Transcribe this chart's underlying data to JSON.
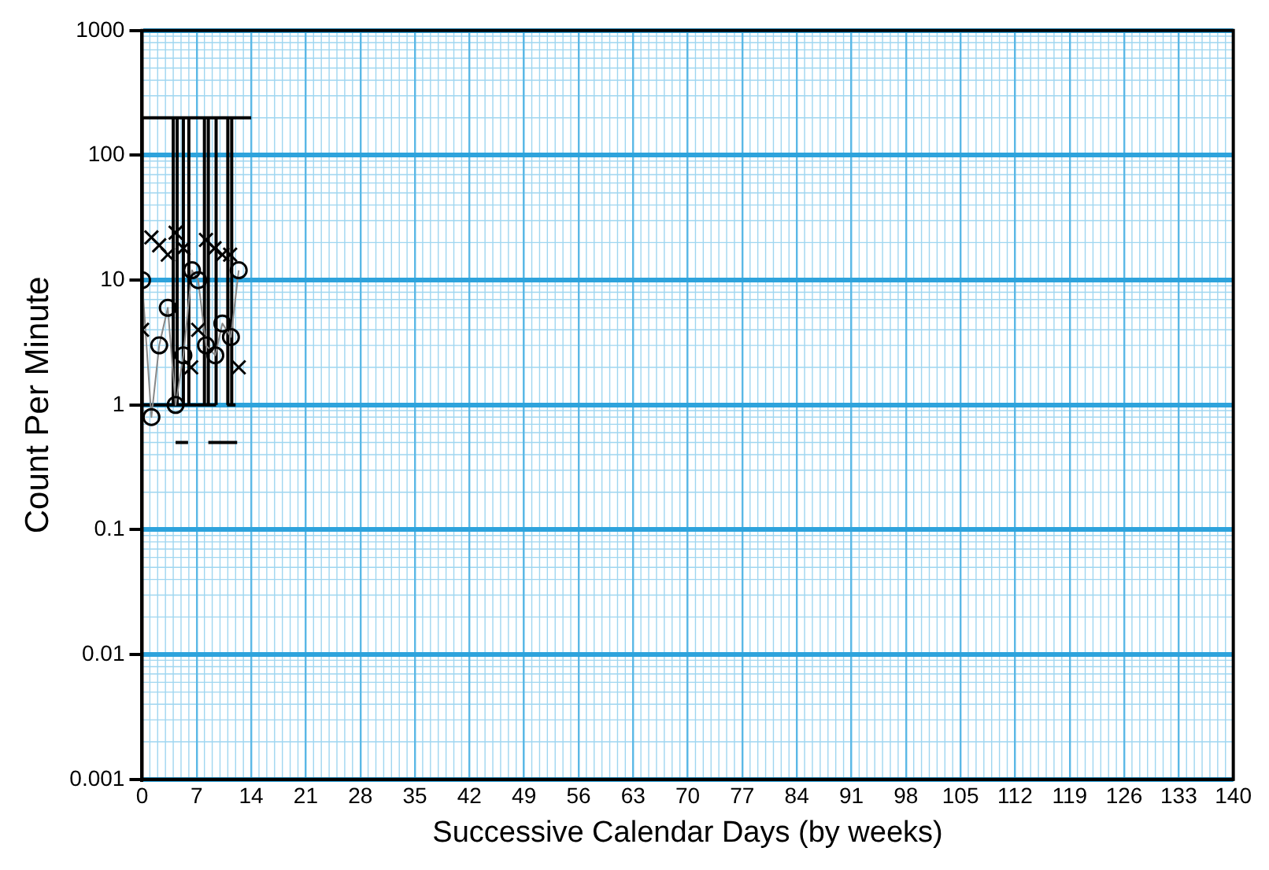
{
  "chart_data": {
    "type": "scatter",
    "xlabel": "Successive Calendar Days (by weeks)",
    "ylabel": "Count Per Minute",
    "xlim": [
      0,
      140
    ],
    "xticks": [
      0,
      7,
      14,
      21,
      28,
      35,
      42,
      49,
      56,
      63,
      70,
      77,
      84,
      91,
      98,
      105,
      112,
      119,
      126,
      133,
      140
    ],
    "ylim": [
      0.001,
      1000
    ],
    "yticks": [
      0.001,
      0.01,
      0.1,
      1,
      10,
      100,
      1000
    ],
    "log": true,
    "grid": true,
    "legend": false,
    "series": [
      {
        "type": "line",
        "color": "#000000",
        "marker": "none",
        "x": [
          0,
          0
        ],
        "values": [
          1,
          200
        ]
      },
      {
        "type": "line",
        "color": "#000000",
        "marker": "none",
        "x": [
          4,
          4
        ],
        "values": [
          1,
          200
        ]
      },
      {
        "type": "line",
        "color": "#000000",
        "marker": "none",
        "x": [
          4.5,
          4.5
        ],
        "values": [
          1,
          200
        ]
      },
      {
        "type": "line",
        "color": "#000000",
        "marker": "none",
        "x": [
          5.3,
          5.3
        ],
        "values": [
          1,
          200
        ]
      },
      {
        "type": "line",
        "color": "#000000",
        "marker": "none",
        "x": [
          6,
          6
        ],
        "values": [
          1,
          200
        ]
      },
      {
        "type": "line",
        "color": "#000000",
        "marker": "none",
        "x": [
          8,
          8
        ],
        "values": [
          1,
          200
        ]
      },
      {
        "type": "line",
        "color": "#000000",
        "marker": "none",
        "x": [
          8.5,
          8.5
        ],
        "values": [
          1,
          200
        ]
      },
      {
        "type": "line",
        "color": "#000000",
        "marker": "none",
        "x": [
          9.5,
          9.5
        ],
        "values": [
          1,
          200
        ]
      },
      {
        "type": "line",
        "color": "#000000",
        "marker": "none",
        "x": [
          11,
          11
        ],
        "values": [
          1,
          200
        ]
      },
      {
        "type": "line",
        "color": "#000000",
        "marker": "none",
        "x": [
          11.5,
          11.5
        ],
        "values": [
          1,
          200
        ]
      },
      {
        "type": "line",
        "color": "#000000",
        "marker": "none",
        "x": [
          0,
          14
        ],
        "values": [
          200,
          200
        ]
      },
      {
        "type": "line",
        "color": "#000000",
        "marker": "none",
        "x": [
          0,
          9.5
        ],
        "values": [
          1,
          1
        ]
      },
      {
        "type": "line",
        "color": "#000000",
        "marker": "none",
        "x": [
          10.9,
          12
        ],
        "values": [
          1,
          1
        ]
      },
      {
        "type": "line",
        "color": "#000000",
        "marker": "none",
        "x": [
          4.3,
          5.9
        ],
        "values": [
          0.5,
          0.5
        ]
      },
      {
        "type": "line",
        "color": "#000000",
        "marker": "none",
        "x": [
          8.5,
          12.2
        ],
        "values": [
          0.5,
          0.5
        ]
      },
      {
        "type": "line",
        "color": "#000000",
        "marker": "circle",
        "line_style": "solid",
        "x": [
          0,
          1.2,
          2.2,
          3.3,
          4.3,
          5.3,
          6.4,
          7.2,
          8.2,
          9.4,
          10.3,
          11.4,
          12.4
        ],
        "values": [
          10,
          0.8,
          3,
          6,
          1,
          2.5,
          12,
          10,
          3,
          2.5,
          4.5,
          3.5,
          12
        ]
      },
      {
        "color": "#000000",
        "marker": "cross",
        "x": [
          0,
          1.2,
          2.2,
          3.3,
          4.3,
          5.3,
          6.3,
          7.2,
          8.2,
          9.3,
          10.3,
          11.3,
          12.4
        ],
        "values": [
          4,
          22,
          19,
          16,
          24,
          18,
          2,
          4,
          21,
          18,
          16,
          16,
          2
        ]
      }
    ]
  }
}
